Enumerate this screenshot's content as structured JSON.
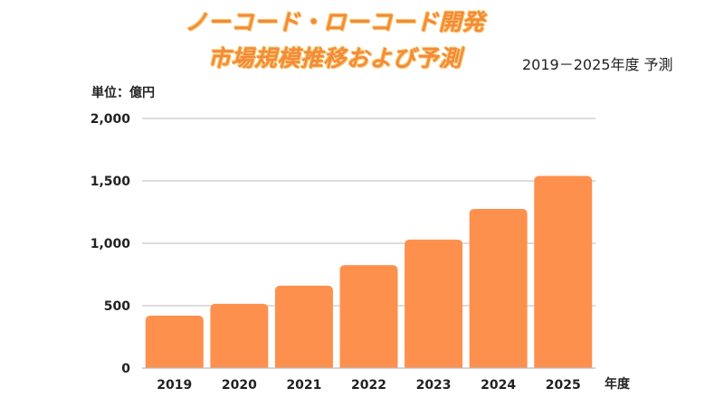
{
  "chart_data": {
    "type": "bar",
    "title_line1": "ノーコード・ローコード開発",
    "title_line2": "市場規模推移および予測",
    "subtitle": "2019－2025年度 予測",
    "ylabel": "単位：億円",
    "xlabel": "年度",
    "categories": [
      "2019",
      "2020",
      "2021",
      "2022",
      "2023",
      "2024",
      "2025"
    ],
    "values": [
      420,
      515,
      660,
      825,
      1030,
      1275,
      1540
    ],
    "ylim": [
      0,
      2000
    ],
    "yticks": [
      "0",
      "500",
      "1,000",
      "1,500",
      "2,000"
    ],
    "grid": true,
    "bar_color": "#fe904d",
    "grid_color": "#bbbbbb"
  }
}
